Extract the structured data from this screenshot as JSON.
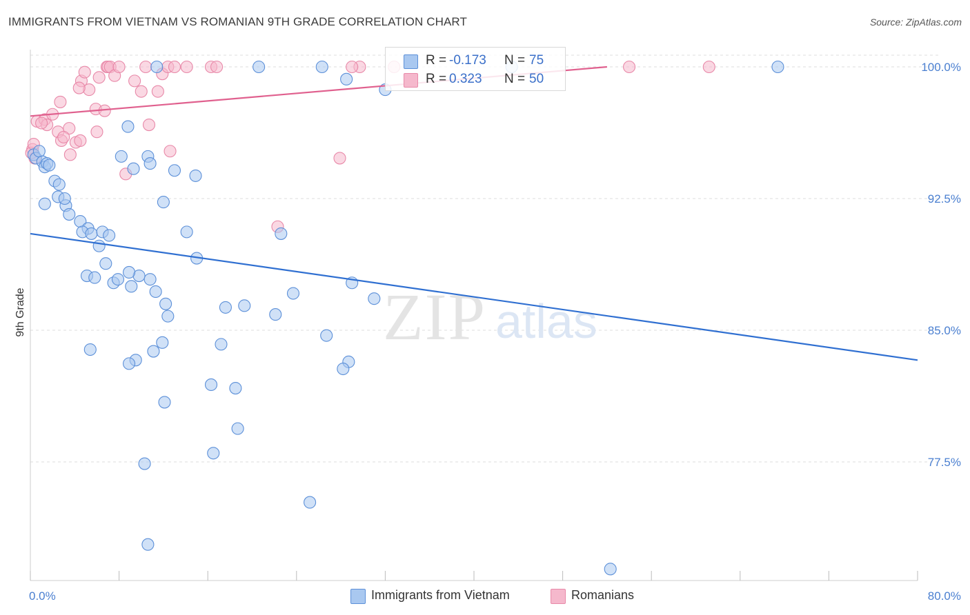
{
  "title": "IMMIGRANTS FROM VIETNAM VS ROMANIAN 9TH GRADE CORRELATION CHART",
  "source": "Source: ZipAtlas.com",
  "watermark": {
    "zip": "ZIP",
    "atlas": "atlas"
  },
  "colors": {
    "blue_fill": "#a9c8f0",
    "blue_stroke": "#5b8fd8",
    "blue_line": "#2f6fd1",
    "pink_fill": "#f5b8cc",
    "pink_stroke": "#e888a8",
    "pink_line": "#e0608e",
    "tick_text": "#4a7fd0",
    "grid": "#dddddd"
  },
  "legend_stats": [
    {
      "swatch_color": "#a9c8f0",
      "r_label": "R =",
      "r_value": "-0.173",
      "n_label": "N =",
      "n_value": "75"
    },
    {
      "swatch_color": "#f5b8cc",
      "r_label": "R =",
      "r_value": "0.323",
      "n_label": "N =",
      "n_value": "50"
    }
  ],
  "bottom_legend": [
    {
      "label": "Immigrants from Vietnam",
      "color": "#a9c8f0"
    },
    {
      "label": "Romanians",
      "color": "#f5b8cc"
    }
  ],
  "chart_data": {
    "type": "scatter",
    "title": "IMMIGRANTS FROM VIETNAM VS ROMANIAN 9TH GRADE CORRELATION CHART",
    "xlabel": "",
    "ylabel": "9th Grade",
    "xlim": [
      0,
      80
    ],
    "ylim": [
      71.5,
      100.8
    ],
    "x_tick_labels": [
      "0.0%",
      "80.0%"
    ],
    "y_ticks": [
      77.5,
      85.0,
      92.5,
      100.0
    ],
    "y_tick_labels": [
      "77.5%",
      "85.0%",
      "92.5%",
      "100.0%"
    ],
    "grid": true,
    "series": [
      {
        "name": "Immigrants from Vietnam",
        "R": -0.173,
        "N": 75,
        "trend": {
          "x": [
            0,
            80
          ],
          "y": [
            90.5,
            83.3
          ]
        },
        "points": [
          [
            0.3,
            95.0
          ],
          [
            0.5,
            94.8
          ],
          [
            0.8,
            95.2
          ],
          [
            1.1,
            94.6
          ],
          [
            1.3,
            94.3
          ],
          [
            1.5,
            94.5
          ],
          [
            1.7,
            94.4
          ],
          [
            2.2,
            93.5
          ],
          [
            2.6,
            93.3
          ],
          [
            1.3,
            92.2
          ],
          [
            2.5,
            92.6
          ],
          [
            3.2,
            92.1
          ],
          [
            3.1,
            92.5
          ],
          [
            3.5,
            91.6
          ],
          [
            4.5,
            91.2
          ],
          [
            5.2,
            90.8
          ],
          [
            4.7,
            90.6
          ],
          [
            5.5,
            90.5
          ],
          [
            6.5,
            90.6
          ],
          [
            7.1,
            90.4
          ],
          [
            6.2,
            89.8
          ],
          [
            5.1,
            88.1
          ],
          [
            5.8,
            88.0
          ],
          [
            7.5,
            87.7
          ],
          [
            7.9,
            87.9
          ],
          [
            9.1,
            87.5
          ],
          [
            9.8,
            88.1
          ],
          [
            10.8,
            87.9
          ],
          [
            11.3,
            87.2
          ],
          [
            8.9,
            88.3
          ],
          [
            6.8,
            88.8
          ],
          [
            8.8,
            96.6
          ],
          [
            9.3,
            94.2
          ],
          [
            10.6,
            94.9
          ],
          [
            10.8,
            94.5
          ],
          [
            12.0,
            92.3
          ],
          [
            13.0,
            94.1
          ],
          [
            14.1,
            90.6
          ],
          [
            15.0,
            89.1
          ],
          [
            12.2,
            86.5
          ],
          [
            12.4,
            85.8
          ],
          [
            11.9,
            84.3
          ],
          [
            11.1,
            83.8
          ],
          [
            9.5,
            83.3
          ],
          [
            8.9,
            83.1
          ],
          [
            5.4,
            83.9
          ],
          [
            17.6,
            86.3
          ],
          [
            17.2,
            84.2
          ],
          [
            19.3,
            86.4
          ],
          [
            22.1,
            85.9
          ],
          [
            22.6,
            90.5
          ],
          [
            23.7,
            87.1
          ],
          [
            26.7,
            84.7
          ],
          [
            29.0,
            87.7
          ],
          [
            31.0,
            86.8
          ],
          [
            28.7,
            83.2
          ],
          [
            28.2,
            82.8
          ],
          [
            16.3,
            81.9
          ],
          [
            18.5,
            81.7
          ],
          [
            12.1,
            80.9
          ],
          [
            18.7,
            79.4
          ],
          [
            16.5,
            78.0
          ],
          [
            10.3,
            77.4
          ],
          [
            25.2,
            75.2
          ],
          [
            10.6,
            72.8
          ],
          [
            52.3,
            71.4
          ],
          [
            11.4,
            100.0
          ],
          [
            20.6,
            100.0
          ],
          [
            26.3,
            100.0
          ],
          [
            28.5,
            99.3
          ],
          [
            43.4,
            100.0
          ],
          [
            67.4,
            100.0
          ],
          [
            32.0,
            98.7
          ],
          [
            8.2,
            94.9
          ],
          [
            14.9,
            93.8
          ]
        ]
      },
      {
        "name": "Romanians",
        "R": 0.323,
        "N": 50,
        "trend": {
          "x": [
            0,
            52
          ],
          "y": [
            97.2,
            100.0
          ]
        },
        "points": [
          [
            0.2,
            95.3
          ],
          [
            0.4,
            94.8
          ],
          [
            0.6,
            96.9
          ],
          [
            1.3,
            97.0
          ],
          [
            1.5,
            96.7
          ],
          [
            2.0,
            97.3
          ],
          [
            2.7,
            98.0
          ],
          [
            2.5,
            96.3
          ],
          [
            2.8,
            95.8
          ],
          [
            3.5,
            96.5
          ],
          [
            3.6,
            95.0
          ],
          [
            4.1,
            95.7
          ],
          [
            4.5,
            95.8
          ],
          [
            4.6,
            99.2
          ],
          [
            4.9,
            99.7
          ],
          [
            5.3,
            98.7
          ],
          [
            5.9,
            97.6
          ],
          [
            6.0,
            96.3
          ],
          [
            6.2,
            99.4
          ],
          [
            6.7,
            97.5
          ],
          [
            6.9,
            100.0
          ],
          [
            7.0,
            100.0
          ],
          [
            7.2,
            100.0
          ],
          [
            7.6,
            99.5
          ],
          [
            8.0,
            100.0
          ],
          [
            8.6,
            93.9
          ],
          [
            9.4,
            99.2
          ],
          [
            10.0,
            98.6
          ],
          [
            10.4,
            100.0
          ],
          [
            11.5,
            98.6
          ],
          [
            11.9,
            99.6
          ],
          [
            12.4,
            100.0
          ],
          [
            13.0,
            100.0
          ],
          [
            14.1,
            100.0
          ],
          [
            16.3,
            100.0
          ],
          [
            16.8,
            100.0
          ],
          [
            10.7,
            96.7
          ],
          [
            12.6,
            95.2
          ],
          [
            22.3,
            90.9
          ],
          [
            27.9,
            94.8
          ],
          [
            0.1,
            95.1
          ],
          [
            0.3,
            95.6
          ],
          [
            1.0,
            96.8
          ],
          [
            3.0,
            96.0
          ],
          [
            4.4,
            98.8
          ],
          [
            29.7,
            100.0
          ],
          [
            32.8,
            100.0
          ],
          [
            54.0,
            100.0
          ],
          [
            61.2,
            100.0
          ],
          [
            29.0,
            100.0
          ]
        ]
      }
    ]
  }
}
